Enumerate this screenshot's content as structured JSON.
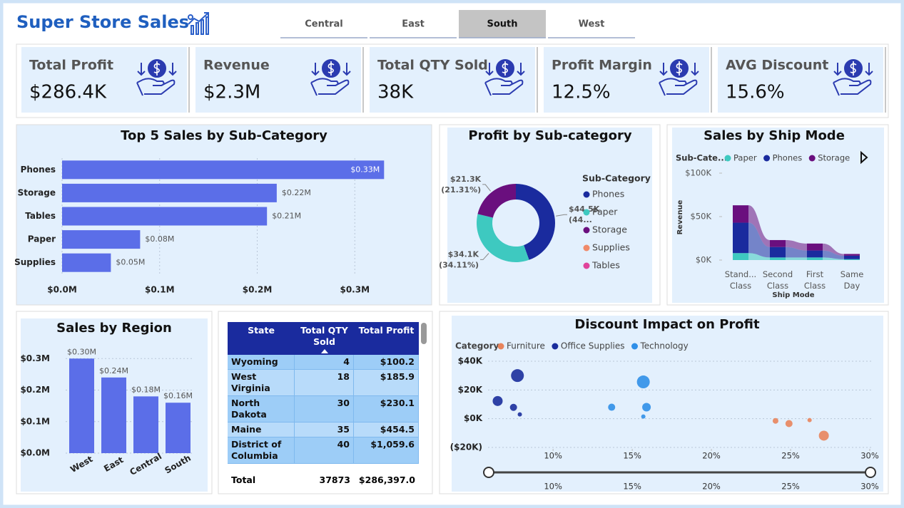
{
  "header": {
    "title": "Super Store Sales",
    "tabs": [
      "Central",
      "East",
      "South",
      "West"
    ],
    "selected_tab": 2
  },
  "kpis": [
    {
      "label": "Total Profit",
      "value": "$286.4K"
    },
    {
      "label": "Revenue",
      "value": "$2.3M"
    },
    {
      "label": "Total QTY Sold",
      "value": "38K"
    },
    {
      "label": "Profit Margin",
      "value": "12.5%"
    },
    {
      "label": "AVG Discount",
      "value": "15.6%"
    }
  ],
  "table": {
    "columns": [
      "State",
      "Total QTY Sold",
      "Total Profit"
    ],
    "rows": [
      [
        "Wyoming",
        4,
        "$100.2"
      ],
      [
        "West Virginia",
        18,
        "$185.9"
      ],
      [
        "North Dakota",
        30,
        "$230.1"
      ],
      [
        "Maine",
        35,
        "$454.5"
      ],
      [
        "District of Columbia",
        40,
        "$1,059.6"
      ]
    ],
    "total": [
      "Total",
      37873,
      "$286,397.0"
    ]
  },
  "chart_data": [
    {
      "type": "bar",
      "orientation": "horizontal",
      "title": "Top 5 Sales by Sub-Category",
      "categories": [
        "Phones",
        "Storage",
        "Tables",
        "Paper",
        "Supplies"
      ],
      "values": [
        0.33,
        0.22,
        0.21,
        0.08,
        0.05
      ],
      "value_labels": [
        "$0.33M",
        "$0.22M",
        "$0.21M",
        "$0.08M",
        "$0.05M"
      ],
      "color": "#5b6ee8",
      "xlim": [
        0,
        0.37
      ],
      "xticks": [
        {
          "value": 0,
          "label": "$0.0M"
        },
        {
          "value": 0.1,
          "label": "$0.1M"
        },
        {
          "value": 0.2,
          "label": "$0.2M"
        },
        {
          "value": 0.3,
          "label": "$0.3M"
        }
      ],
      "grid": true
    },
    {
      "type": "pie",
      "title": "Profit by Sub-category",
      "legend_title": "Sub-Category",
      "legend": "right",
      "hole": 0.6,
      "categories": [
        "Phones",
        "Paper",
        "Storage",
        "Supplies",
        "Tables"
      ],
      "values": [
        44.5,
        34.1,
        21.3,
        null,
        null
      ],
      "value_labels": [
        "$44.5K",
        "$34.1K",
        "$21.3K",
        null,
        null
      ],
      "percent_labels": [
        "(44...",
        "(34.11%)",
        "(21.31%)",
        null,
        null
      ],
      "colors": [
        "#1a2b9e",
        "#3ec9c0",
        "#6a0f7e",
        "#f08a6a",
        "#e0439b"
      ]
    },
    {
      "type": "ribbon",
      "title": "Sales by Ship Mode",
      "legend_title": "Sub-Cate...",
      "x_label": "Ship Mode",
      "y_label": "Revenue",
      "categories": [
        "Stand... Class",
        "Second Class",
        "First Class",
        "Same Day"
      ],
      "series": [
        {
          "name": "Paper",
          "color": "#3ec9c0",
          "values": [
            8,
            3,
            3,
            1
          ]
        },
        {
          "name": "Phones",
          "color": "#1a2b9e",
          "values": [
            35,
            12,
            8,
            4
          ]
        },
        {
          "name": "Storage",
          "color": "#6a0f7e",
          "values": [
            20,
            8,
            8,
            2
          ]
        }
      ],
      "ylim": [
        0,
        100
      ],
      "yticks": [
        {
          "value": 0,
          "label": "$0K"
        },
        {
          "value": 50,
          "label": "$50K"
        },
        {
          "value": 100,
          "label": "$100K"
        }
      ]
    },
    {
      "type": "bar",
      "title": "Sales by Region",
      "categories": [
        "West",
        "East",
        "Central",
        "South"
      ],
      "values": [
        0.3,
        0.24,
        0.18,
        0.16
      ],
      "value_labels": [
        "$0.30M",
        "$0.24M",
        "$0.18M",
        "$0.16M"
      ],
      "color": "#5b6ee8",
      "ylim": [
        0,
        0.33
      ],
      "yticks": [
        {
          "value": 0,
          "label": "$0.0M"
        },
        {
          "value": 0.1,
          "label": "$0.1M"
        },
        {
          "value": 0.2,
          "label": "$0.2M"
        },
        {
          "value": 0.3,
          "label": "$0.3M"
        }
      ],
      "grid": true
    },
    {
      "type": "scatter",
      "title": "Discount Impact on Profit",
      "legend_title": "Category",
      "series": [
        {
          "name": "Furniture",
          "color": "#e8845c",
          "x": [
            24.05,
            24.9,
            26.2,
            27.1
          ],
          "y": [
            -1.5,
            -3.4,
            -1,
            -11.8
          ],
          "sizes": [
            4,
            5,
            3,
            7
          ]
        },
        {
          "name": "Office Supplies",
          "color": "#1a2d9c",
          "x": [
            7.75,
            6.5,
            7.5,
            7.9
          ],
          "y": [
            30,
            12.3,
            7.9,
            3
          ],
          "sizes": [
            9,
            7,
            5,
            3
          ]
        },
        {
          "name": "Technology",
          "color": "#2f8fe8",
          "x": [
            15.7,
            13.7,
            15.9,
            15.7
          ],
          "y": [
            25.6,
            8,
            8,
            1.5
          ],
          "sizes": [
            9,
            5,
            6,
            3
          ]
        }
      ],
      "xlim": [
        4,
        30
      ],
      "xticks": [
        {
          "value": 10,
          "label": "10%"
        },
        {
          "value": 15,
          "label": "15%"
        },
        {
          "value": 20,
          "label": "20%"
        },
        {
          "value": 25,
          "label": "25%"
        },
        {
          "value": 30,
          "label": "30%"
        }
      ],
      "ylim": [
        -20,
        40
      ],
      "yticks": [
        {
          "value": -20,
          "label": "($20K)"
        },
        {
          "value": 0,
          "label": "$0K"
        },
        {
          "value": 20,
          "label": "$20K"
        },
        {
          "value": 40,
          "label": "$40K"
        }
      ],
      "grid": true
    }
  ]
}
